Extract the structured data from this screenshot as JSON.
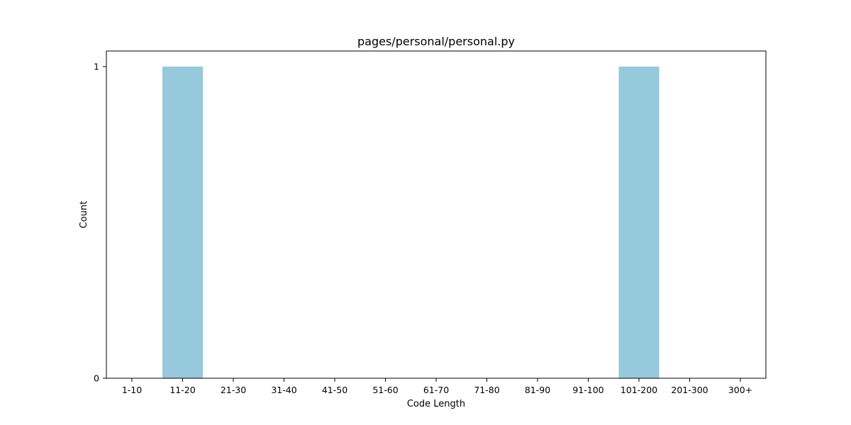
{
  "chart_data": {
    "type": "bar",
    "title": "pages/personal/personal.py",
    "xlabel": "Code Length",
    "ylabel": "Count",
    "categories": [
      "1-10",
      "11-20",
      "21-30",
      "31-40",
      "41-50",
      "51-60",
      "61-70",
      "71-80",
      "81-90",
      "91-100",
      "101-200",
      "201-300",
      "300+"
    ],
    "values": [
      0,
      1,
      0,
      0,
      0,
      0,
      0,
      0,
      0,
      0,
      1,
      0,
      0
    ],
    "ylim": [
      0,
      1.05
    ],
    "yticks": [
      0,
      1
    ],
    "bar_color": "#96c9dc",
    "grid": false,
    "legend": "none"
  }
}
